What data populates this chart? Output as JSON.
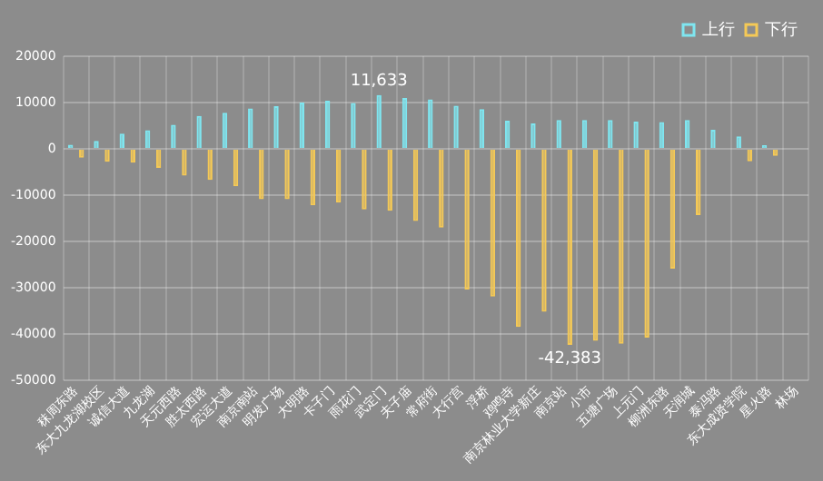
{
  "chart_data": {
    "type": "bar",
    "categories": [
      "秣周东路",
      "东大九龙湖校区",
      "诚信大道",
      "九龙湖",
      "天元西路",
      "胜太西路",
      "宏运大道",
      "南京南站",
      "明发广场",
      "大明路",
      "卡子门",
      "雨花门",
      "武定门",
      "夫子庙",
      "常府街",
      "大行宫",
      "浮桥",
      "鸡鸣寺",
      "南京林业大学新庄",
      "南京站",
      "小市",
      "五塘广场",
      "上元门",
      "柳洲东路",
      "天润城",
      "泰冯路",
      "东大成贤学院",
      "星火路",
      "林场"
    ],
    "series": [
      {
        "name": "上行",
        "color": "#7fe6f0",
        "values": [
          900,
          1700,
          3300,
          4000,
          5200,
          7100,
          7800,
          8700,
          9200,
          10000,
          10400,
          9900,
          11633,
          11000,
          10700,
          9300,
          8600,
          6100,
          5500,
          6200,
          6200,
          6200,
          5900,
          5800,
          6200,
          4100,
          2700,
          800,
          0
        ],
        "value_labels": [
          null,
          null,
          null,
          null,
          null,
          null,
          null,
          null,
          null,
          null,
          null,
          null,
          "11,633",
          null,
          null,
          null,
          null,
          null,
          null,
          null,
          null,
          null,
          null,
          null,
          null,
          null,
          null,
          null,
          null
        ]
      },
      {
        "name": "下行",
        "color": "#f5c956",
        "values": [
          -1900,
          -2800,
          -3000,
          -4100,
          -5800,
          -6700,
          -8100,
          -10900,
          -10900,
          -12200,
          -11600,
          -13100,
          -13400,
          -15600,
          -17000,
          -30400,
          -31900,
          -38500,
          -35200,
          -42383,
          -41500,
          -42100,
          -40800,
          -25900,
          -14300,
          0,
          -2700,
          -1500,
          0
        ],
        "value_labels": [
          null,
          null,
          null,
          null,
          null,
          null,
          null,
          null,
          null,
          null,
          null,
          null,
          null,
          null,
          null,
          null,
          null,
          null,
          null,
          "-42,383",
          null,
          null,
          null,
          null,
          null,
          null,
          null,
          null,
          null
        ]
      }
    ],
    "ylim": [
      -50000,
      20000
    ],
    "yticks": [
      -50000,
      -40000,
      -30000,
      -20000,
      -10000,
      0,
      10000,
      20000
    ],
    "grid": true,
    "legend": "top right"
  }
}
